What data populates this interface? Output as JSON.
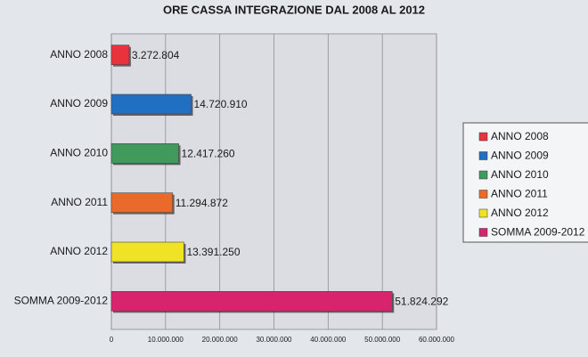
{
  "chart_data": {
    "type": "hbar",
    "title": "ORE CASSA INTEGRAZIONE DAL 2008 AL 2012",
    "categories": [
      "ANNO 2008",
      "ANNO 2009",
      "ANNO 2010",
      "ANNO 2011",
      "ANNO 2012",
      "SOMMA 2009-2012"
    ],
    "values": [
      3272804,
      14720910,
      12417260,
      11294872,
      13391250,
      51824292
    ],
    "value_labels": [
      "3.272.804",
      "14.720.910",
      "12.417.260",
      "11.294.872",
      "13.391.250",
      "51.824.292"
    ],
    "colors": [
      "#e8333c",
      "#1f6fc2",
      "#3f9a5c",
      "#ea6a2c",
      "#f0e326",
      "#d8246c"
    ],
    "xlim": [
      0,
      60000000
    ],
    "xticks": [
      0,
      {
        "value": 10000000,
        "label": "10.000.000"
      },
      {
        "value": 20000000,
        "label": "20.000.000"
      },
      {
        "value": 30000000,
        "label": "30.000.000"
      },
      {
        "value": 40000000,
        "label": "40.000.000"
      },
      {
        "value": 50000000,
        "label": "50.000.000"
      },
      {
        "value": 60000000,
        "label": "60.000.000"
      }
    ],
    "grid": true,
    "legend": "right"
  }
}
